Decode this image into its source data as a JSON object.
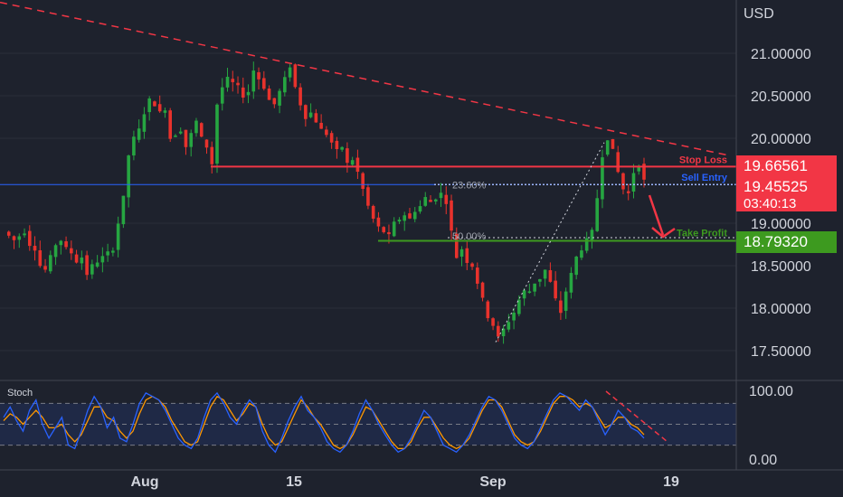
{
  "currency_label": "USD",
  "indicator_label": "Stoch",
  "colors": {
    "background": "#1e222d",
    "up": "#26a641",
    "down": "#e8322c",
    "stop_line": "#f23645",
    "entry_line": "#2962ff",
    "tp_line": "#3d9a1f",
    "stoch_k": "#2962ff",
    "stoch_d": "#ff9800"
  },
  "chart_data": {
    "type": "candlestick",
    "currency": "USD",
    "y_ticks": [
      "21.00000",
      "20.50000",
      "20.00000",
      "19.00000",
      "18.50000",
      "18.00000",
      "17.50000"
    ],
    "ylim": [
      17.3,
      21.5
    ],
    "x_ticks": [
      "Aug",
      "15",
      "Sep",
      "19"
    ],
    "levels": {
      "stop_loss": {
        "label": "Stop Loss",
        "value": 19.66561,
        "value_text": "19.66561"
      },
      "sell_entry": {
        "label": "Sell Entry",
        "value": 19.45525,
        "value_text": "19.45525",
        "countdown": "03:40:13"
      },
      "take_profit": {
        "label": "Take Profit",
        "value": 18.7932,
        "value_text": "18.79320"
      }
    },
    "fib_levels": [
      {
        "label": "23.60%",
        "value": 19.45
      },
      {
        "label": "50.00%",
        "value": 18.83
      }
    ],
    "trendline": {
      "from": 21.6,
      "to": 19.8
    },
    "price_path": [
      18.9,
      18.85,
      18.8,
      18.85,
      18.9,
      18.75,
      18.7,
      18.5,
      18.45,
      18.6,
      18.75,
      18.8,
      18.7,
      18.65,
      18.55,
      18.6,
      18.4,
      18.5,
      18.55,
      18.6,
      18.65,
      18.7,
      19.0,
      19.3,
      19.8,
      20.0,
      20.1,
      20.3,
      20.45,
      20.4,
      20.3,
      20.35,
      20.0,
      20.05,
      20.1,
      19.9,
      20.05,
      20.2,
      20.0,
      19.9,
      19.7,
      20.4,
      20.6,
      20.7,
      20.65,
      20.6,
      20.5,
      20.55,
      20.8,
      20.7,
      20.6,
      20.45,
      20.4,
      20.55,
      20.7,
      20.85,
      20.6,
      20.4,
      20.25,
      20.3,
      20.2,
      20.1,
      20.05,
      19.95,
      19.85,
      19.9,
      19.7,
      19.75,
      19.6,
      19.4,
      19.2,
      19.05,
      18.95,
      18.9,
      18.85,
      19.0,
      19.05,
      19.1,
      19.05,
      19.15,
      19.2,
      19.3,
      19.25,
      19.3,
      19.35,
      19.25,
      18.9,
      18.6,
      18.7,
      18.55,
      18.5,
      18.3,
      18.1,
      17.9,
      17.8,
      17.65,
      17.75,
      17.85,
      17.95,
      18.1,
      18.2,
      18.2,
      18.3,
      18.35,
      18.45,
      18.3,
      18.1,
      17.95,
      18.2,
      18.4,
      18.6,
      18.7,
      18.8,
      18.9,
      19.3,
      19.8,
      20.0,
      19.85,
      19.6,
      19.4,
      19.35,
      19.6,
      19.7,
      19.5
    ],
    "stochastic": {
      "name": "Stoch",
      "y_ticks": [
        "100.00",
        "0.00"
      ],
      "ylim": [
        0,
        100
      ],
      "bands": [
        80,
        50,
        20
      ],
      "k_values": [
        60,
        75,
        55,
        40,
        70,
        85,
        50,
        30,
        45,
        60,
        20,
        15,
        40,
        70,
        90,
        75,
        45,
        60,
        30,
        25,
        50,
        80,
        95,
        90,
        85,
        70,
        50,
        30,
        20,
        15,
        30,
        60,
        85,
        95,
        80,
        60,
        50,
        70,
        85,
        75,
        40,
        20,
        10,
        30,
        55,
        75,
        90,
        70,
        60,
        45,
        25,
        15,
        10,
        20,
        40,
        65,
        85,
        70,
        50,
        35,
        20,
        10,
        15,
        30,
        50,
        70,
        60,
        40,
        20,
        15,
        10,
        20,
        35,
        55,
        75,
        90,
        85,
        70,
        50,
        30,
        20,
        15,
        25,
        45,
        65,
        85,
        95,
        90,
        80,
        70,
        85,
        75,
        55,
        35,
        50,
        70,
        60,
        45,
        40,
        30
      ],
      "d_values": [
        55,
        65,
        60,
        50,
        60,
        70,
        60,
        45,
        45,
        50,
        35,
        25,
        35,
        55,
        75,
        75,
        60,
        55,
        40,
        30,
        40,
        65,
        85,
        90,
        85,
        75,
        55,
        40,
        25,
        20,
        25,
        50,
        75,
        90,
        85,
        70,
        55,
        65,
        80,
        75,
        50,
        30,
        20,
        25,
        45,
        65,
        85,
        75,
        60,
        50,
        35,
        20,
        15,
        20,
        35,
        55,
        75,
        70,
        55,
        40,
        25,
        15,
        15,
        25,
        45,
        60,
        60,
        45,
        30,
        20,
        15,
        20,
        30,
        50,
        70,
        85,
        85,
        75,
        55,
        35,
        25,
        20,
        25,
        40,
        60,
        80,
        90,
        90,
        85,
        75,
        80,
        75,
        60,
        45,
        50,
        60,
        60,
        50,
        45,
        35
      ]
    }
  }
}
